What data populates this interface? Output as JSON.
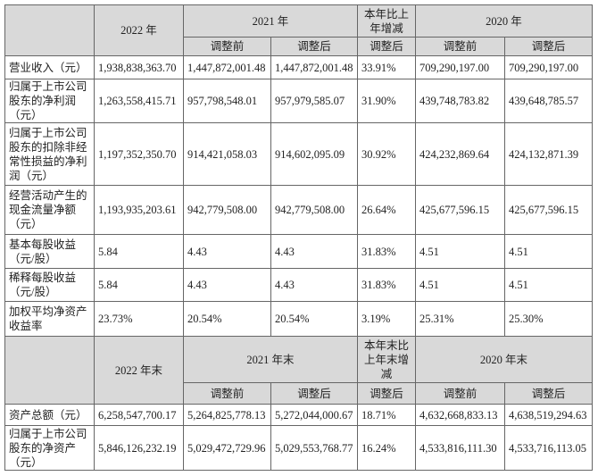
{
  "header_top": {
    "year_a": "2022 年",
    "year_b": "2021 年",
    "change": "本年比上年增减",
    "year_c": "2020 年",
    "sub": [
      "调整前",
      "调整后",
      "调整后",
      "调整前",
      "调整后"
    ]
  },
  "rows_top": [
    [
      "营业收入（元）",
      "1,938,838,363.70",
      "1,447,872,001.48",
      "1,447,872,001.48",
      "33.91%",
      "709,290,197.00",
      "709,290,197.00"
    ],
    [
      "归属于上市公司股东的净利润（元）",
      "1,263,558,415.71",
      "957,798,548.01",
      "957,979,585.07",
      "31.90%",
      "439,748,783.82",
      "439,648,785.57"
    ],
    [
      "归属于上市公司股东的扣除非经常性损益的净利润（元）",
      "1,197,352,350.70",
      "914,421,058.03",
      "914,602,095.09",
      "30.92%",
      "424,232,869.64",
      "424,132,871.39"
    ],
    [
      "经营活动产生的现金流量净额（元）",
      "1,193,935,203.61",
      "942,779,508.00",
      "942,779,508.00",
      "26.64%",
      "425,677,596.15",
      "425,677,596.15"
    ],
    [
      "基本每股收益（元/股）",
      "5.84",
      "4.43",
      "4.43",
      "31.83%",
      "4.51",
      "4.51"
    ],
    [
      "稀释每股收益（元/股）",
      "5.84",
      "4.43",
      "4.43",
      "31.83%",
      "4.51",
      "4.51"
    ],
    [
      "加权平均净资产收益率",
      "23.73%",
      "20.54%",
      "20.54%",
      "3.19%",
      "25.31%",
      "25.30%"
    ]
  ],
  "header_bottom": {
    "year_a": "2022 年末",
    "year_b": "2021 年末",
    "change": "本年末比上年末增减",
    "year_c": "2020 年末",
    "sub": [
      "调整前",
      "调整后",
      "调整后",
      "调整前",
      "调整后"
    ]
  },
  "rows_bottom": [
    [
      "资产总额（元）",
      "6,258,547,700.17",
      "5,264,825,778.13",
      "5,272,044,000.67",
      "18.71%",
      "4,632,668,833.13",
      "4,638,519,294.63"
    ],
    [
      "归属于上市公司股东的净资产（元）",
      "5,846,126,232.19",
      "5,029,472,729.96",
      "5,029,553,768.77",
      "16.24%",
      "4,533,816,111.30",
      "4,533,716,113.05"
    ]
  ]
}
